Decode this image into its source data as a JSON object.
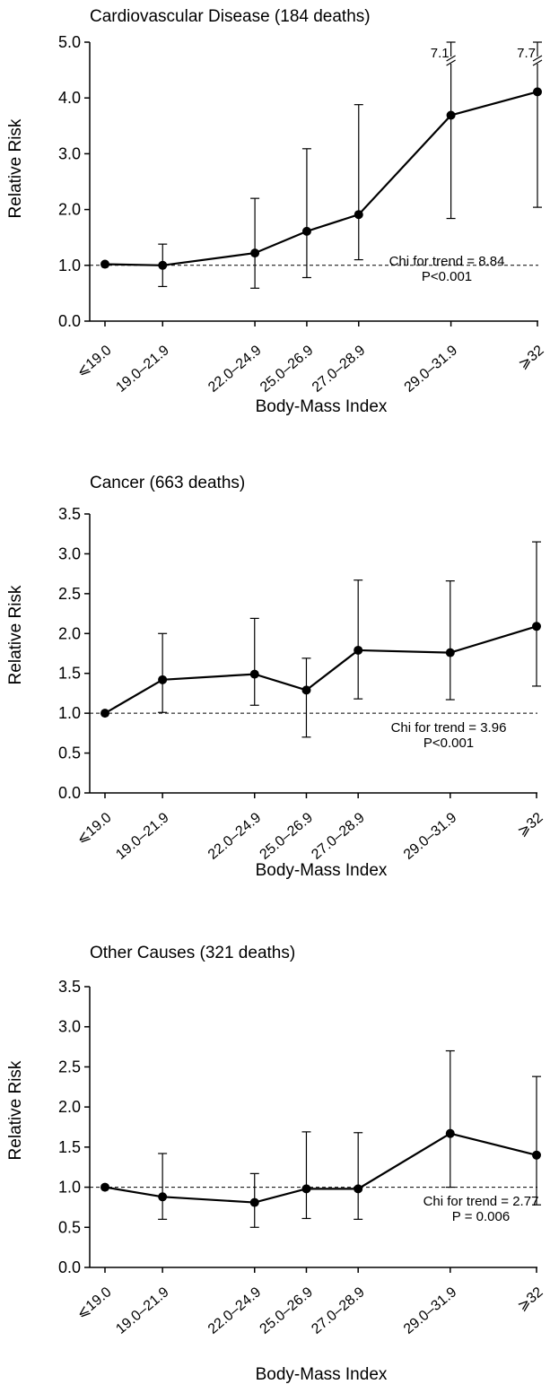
{
  "chart_data": [
    {
      "type": "line",
      "title": "Cardiovascular Disease (184 deaths)",
      "xlabel": "Body-Mass Index",
      "ylabel": "Relative Risk",
      "categories": [
        "<19.0",
        "19.0–21.9",
        "22.0–24.9",
        "25.0–26.9",
        "27.0–28.9",
        "29.0–31.9",
        "≥32"
      ],
      "category_display": [
        "⩽19.0",
        "19.0–21.9",
        "22.0–24.9",
        "25.0–26.9",
        "27.0–28.9",
        "29.0–31.9",
        "⩾32"
      ],
      "x_positions": [
        0,
        1,
        2.6,
        3.5,
        4.4,
        6.0,
        7.5
      ],
      "values": [
        1.02,
        1.0,
        1.22,
        1.61,
        1.91,
        3.69,
        4.11
      ],
      "ci_lower": [
        1.02,
        0.62,
        0.59,
        0.78,
        1.1,
        1.84,
        2.04
      ],
      "ci_upper": [
        1.02,
        1.38,
        2.2,
        3.09,
        3.88,
        7.1,
        7.7
      ],
      "broken_upper_labels": [
        "",
        "",
        "",
        "",
        "",
        "7.1",
        "7.7"
      ],
      "ylim": [
        0,
        5
      ],
      "yticks": [
        "0.0",
        "1.0",
        "2.0",
        "3.0",
        "4.0",
        "5.0"
      ],
      "reference_line": 1.0,
      "stat_line1": "Chi for trend = 8.84",
      "stat_line2": "P<0.001",
      "grid": false
    },
    {
      "type": "line",
      "title": "Cancer (663 deaths)",
      "xlabel": "Body-Mass Index",
      "ylabel": "Relative Risk",
      "categories": [
        "<19.0",
        "19.0–21.9",
        "22.0–24.9",
        "25.0–26.9",
        "27.0–28.9",
        "29.0–31.9",
        "≥32"
      ],
      "category_display": [
        "⩽19.0",
        "19.0–21.9",
        "22.0–24.9",
        "25.0–26.9",
        "27.0–28.9",
        "29.0–31.9",
        "⩾32"
      ],
      "x_positions": [
        0,
        1,
        2.6,
        3.5,
        4.4,
        6.0,
        7.5
      ],
      "values": [
        1.0,
        1.42,
        1.49,
        1.29,
        1.79,
        1.76,
        2.09
      ],
      "ci_lower": [
        1.0,
        1.01,
        1.1,
        0.7,
        1.18,
        1.17,
        1.34
      ],
      "ci_upper": [
        1.0,
        2.0,
        2.19,
        1.69,
        2.67,
        2.66,
        3.15
      ],
      "broken_upper_labels": [
        "",
        "",
        "",
        "",
        "",
        "",
        ""
      ],
      "ylim": [
        0,
        3.5
      ],
      "yticks": [
        "0.0",
        "0.5",
        "1.0",
        "1.5",
        "2.0",
        "2.5",
        "3.0",
        "3.5"
      ],
      "reference_line": 1.0,
      "stat_line1": "Chi for trend = 3.96",
      "stat_line2": "P<0.001",
      "grid": false
    },
    {
      "type": "line",
      "title": "Other Causes (321 deaths)",
      "xlabel": "Body-Mass Index",
      "ylabel": "Relative Risk",
      "categories": [
        "<19.0",
        "19.0–21.9",
        "22.0–24.9",
        "25.0–26.9",
        "27.0–28.9",
        "29.0–31.9",
        "≥32"
      ],
      "category_display": [
        "⩽19.0",
        "19.0–21.9",
        "22.0–24.9",
        "25.0–26.9",
        "27.0–28.9",
        "29.0–31.9",
        "⩾32"
      ],
      "x_positions": [
        0,
        1,
        2.6,
        3.5,
        4.4,
        6.0,
        7.5
      ],
      "values": [
        1.0,
        0.88,
        0.81,
        0.98,
        0.98,
        1.67,
        1.4
      ],
      "ci_lower": [
        1.0,
        0.6,
        0.5,
        0.61,
        0.6,
        1.0,
        0.78
      ],
      "ci_upper": [
        1.0,
        1.42,
        1.17,
        1.69,
        1.68,
        2.7,
        2.38
      ],
      "broken_upper_labels": [
        "",
        "",
        "",
        "",
        "",
        "",
        ""
      ],
      "ylim": [
        0,
        3.5
      ],
      "yticks": [
        "0.0",
        "0.5",
        "1.0",
        "1.5",
        "2.0",
        "2.5",
        "3.0",
        "3.5"
      ],
      "reference_line": 1.0,
      "stat_line1": "Chi for trend = 2.77",
      "stat_line2": "P = 0.006",
      "grid": false
    }
  ]
}
